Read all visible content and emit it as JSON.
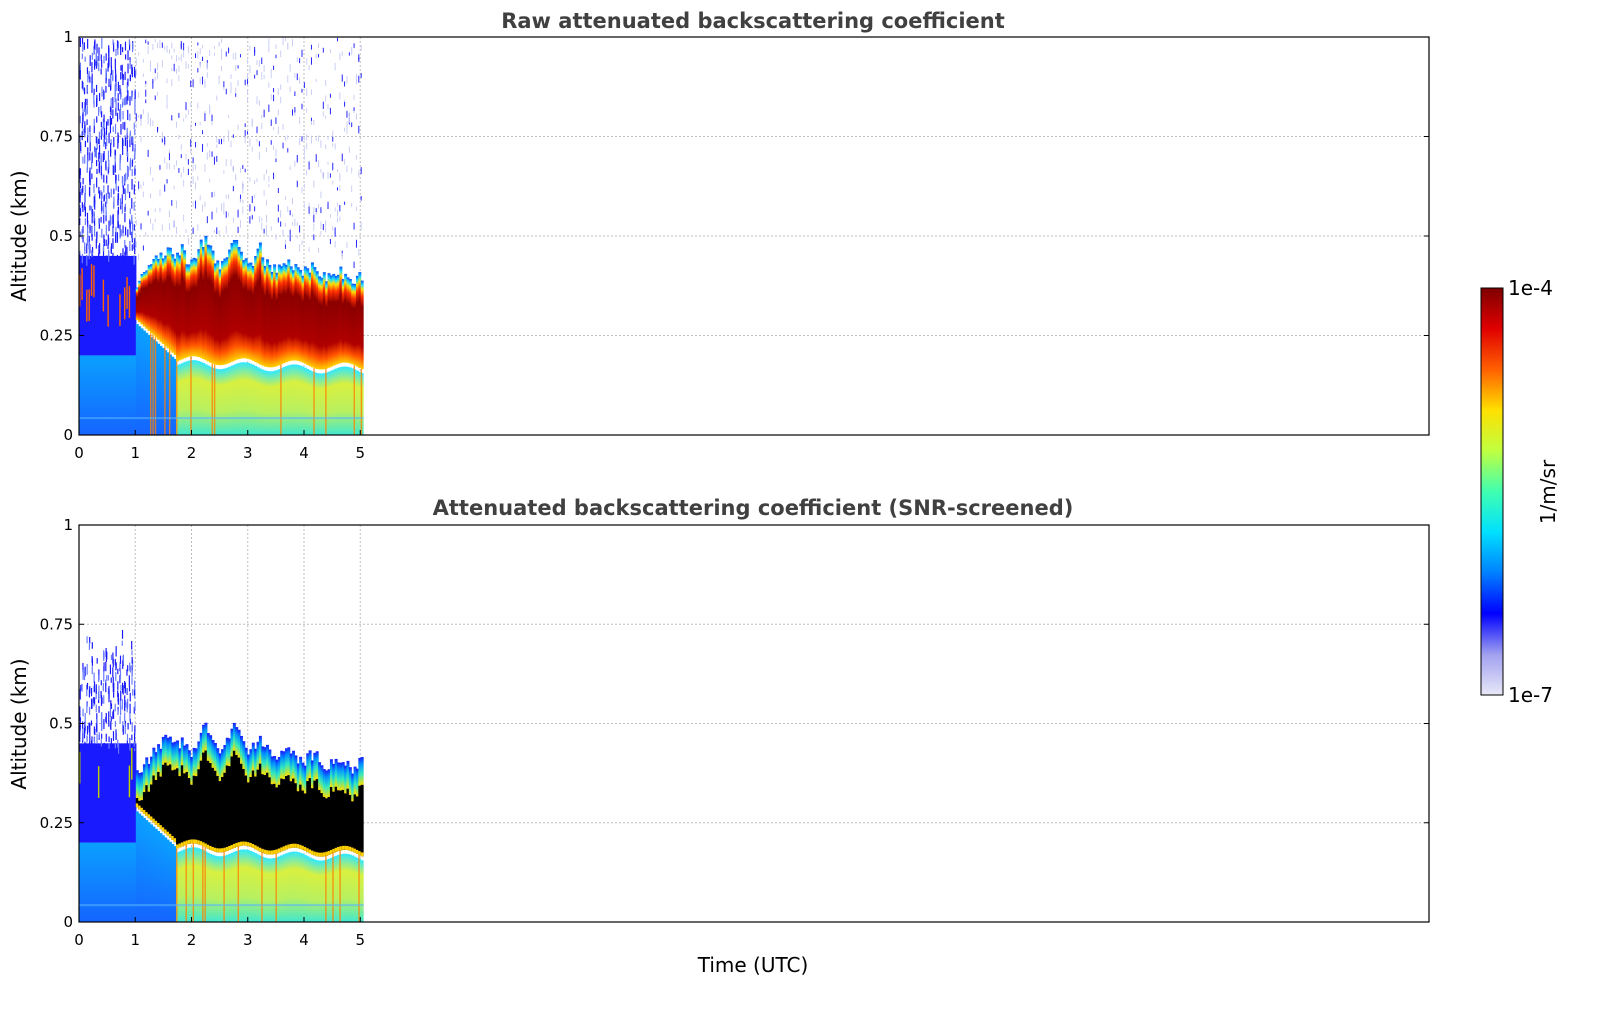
{
  "chart_data": [
    {
      "type": "heatmap",
      "title": "Raw attenuated backscattering coefficient",
      "xlabel": "",
      "ylabel": "Altitude (km)",
      "xlim": [
        0,
        24
      ],
      "ylim": [
        0,
        1
      ],
      "xticks": [
        "0",
        "1",
        "2",
        "3",
        "4",
        "5"
      ],
      "yticks": [
        "0",
        "0.25",
        "0.5",
        "0.75",
        "1"
      ],
      "data_time_range": [
        0,
        5.05
      ],
      "grid": true,
      "layers": [
        {
          "name": "high-altitude noise",
          "time": [
            0,
            1.0
          ],
          "altitude": [
            0.45,
            1.0
          ],
          "level": "low (1e-7 to 1e-6)"
        },
        {
          "name": "cloud layer",
          "time": [
            0.95,
            5.05
          ],
          "base_km": [
            0.3,
            0.19,
            0.19,
            0.17
          ],
          "top_km": [
            0.43,
            0.5,
            0.45,
            0.4
          ],
          "level": "high (~1e-4)"
        },
        {
          "name": "boundary layer",
          "time": [
            0,
            5.05
          ],
          "altitude": [
            0,
            0.2
          ],
          "level": "moderate (1e-6 to 1e-5)"
        }
      ]
    },
    {
      "type": "heatmap",
      "title": "Attenuated backscattering coefficient (SNR-screened)",
      "xlabel": "Time (UTC)",
      "ylabel": "Altitude (km)",
      "xlim": [
        0,
        24
      ],
      "ylim": [
        0,
        1
      ],
      "xticks": [
        "0",
        "1",
        "2",
        "3",
        "4",
        "5"
      ],
      "yticks": [
        "0",
        "0.25",
        "0.5",
        "0.75",
        "1"
      ],
      "data_time_range": [
        0,
        5.05
      ],
      "grid": true,
      "layers": [
        {
          "name": "screened signal",
          "time": [
            0,
            1.0
          ],
          "altitude": [
            0,
            0.78
          ],
          "level": "low to moderate"
        },
        {
          "name": "saturated cloud (black)",
          "time": [
            0.95,
            5.05
          ],
          "base_km": [
            0.3,
            0.19,
            0.19,
            0.17
          ],
          "top_km": [
            0.4,
            0.38,
            0.35,
            0.32
          ],
          "level": "saturated"
        },
        {
          "name": "boundary layer",
          "time": [
            0,
            5.05
          ],
          "altitude": [
            0,
            0.2
          ],
          "level": "moderate"
        }
      ]
    }
  ],
  "colorbar": {
    "label": "1/m/sr",
    "min_label": "1e-7",
    "max_label": "1e-4",
    "scale": "log",
    "colormap": "jet",
    "colors": [
      "#e8e8f8",
      "#a0a0f0",
      "#0000ff",
      "#0080ff",
      "#00e0ff",
      "#40ffb0",
      "#c0ff40",
      "#ffe000",
      "#ff6000",
      "#e00000",
      "#7f0000"
    ]
  },
  "colors": {
    "low": "#1a1aff",
    "mid": "#0aa6ff",
    "bl": "#9de86a",
    "cloud_edge": "#ffd000",
    "cloud_core": "#8b0000",
    "saturated": "#000000",
    "grid": "#bdbdbd"
  }
}
